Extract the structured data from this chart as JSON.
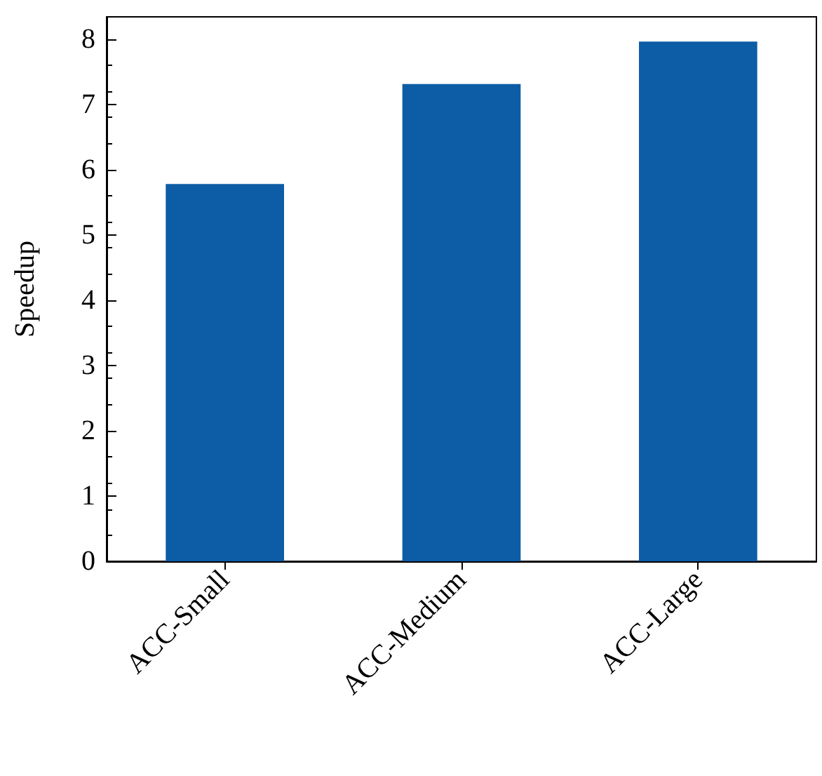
{
  "chart_data": {
    "type": "bar",
    "ylabel": "Speedup",
    "categories": [
      "ACC-Small",
      "ACC-Medium",
      "ACC-Large"
    ],
    "values": [
      5.78,
      7.31,
      7.96
    ],
    "color": "#0c5da5",
    "ylim": [
      0,
      8.34
    ],
    "yticks": [
      0,
      1,
      2,
      3,
      4,
      5,
      6,
      7,
      8
    ],
    "grid": false
  }
}
